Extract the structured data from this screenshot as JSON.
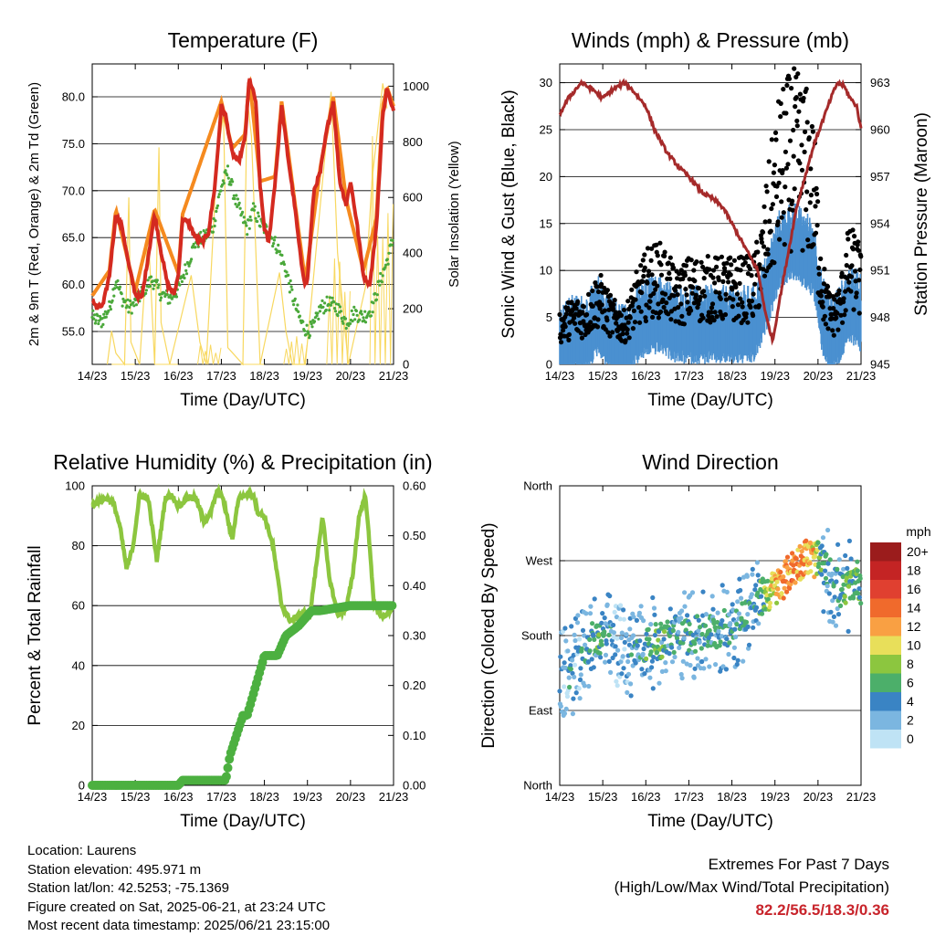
{
  "chart_data": [
    {
      "type": "line",
      "title": "Temperature (F)",
      "xlabel": "Time (Day/UTC)",
      "ylabel": "2m & 9m T (Red, Orange) & 2m Td (Green)",
      "y2label": "Solar Insolation (Yellow)",
      "x_ticks": [
        "14/23",
        "15/23",
        "16/23",
        "17/23",
        "18/23",
        "19/23",
        "20/23",
        "21/23"
      ],
      "ylim": [
        51.5,
        83.5
      ],
      "y_ticks": [
        "55.0",
        "60.0",
        "65.0",
        "70.0",
        "75.0",
        "80.0"
      ],
      "y2lim": [
        0,
        1080
      ],
      "y2_ticks": [
        "0",
        "200",
        "400",
        "600",
        "800",
        "1000"
      ],
      "colors": {
        "t2m": "#d42a20",
        "t9m": "#f58a1f",
        "td": "#4aa83a",
        "solar": "#f8d860"
      },
      "series": [
        {
          "name": "2m T",
          "x": [
            0,
            0.1,
            0.25,
            0.4,
            0.55,
            0.7,
            0.85,
            1.0,
            1.15,
            1.3,
            1.45,
            1.6,
            1.75,
            1.9,
            2.0,
            2.1,
            2.25,
            2.4,
            2.55,
            2.7,
            2.85,
            3.0,
            3.1,
            3.25,
            3.4,
            3.55,
            3.65,
            3.8,
            3.9,
            4.0,
            4.1,
            4.25,
            4.4,
            4.55,
            4.7,
            4.85,
            4.95,
            5.0,
            5.15,
            5.3,
            5.45,
            5.6,
            5.75,
            5.9,
            6.0,
            6.15,
            6.3,
            6.45,
            6.6,
            6.75,
            6.85,
            6.95,
            7.0
          ],
          "y": [
            58.5,
            57.5,
            57.8,
            61.0,
            67.5,
            66.0,
            62.0,
            59.0,
            58.5,
            63.0,
            67.5,
            63.5,
            60.0,
            59.0,
            61.0,
            67.0,
            66.5,
            65.0,
            64.5,
            65.5,
            70.5,
            79.0,
            78.0,
            74.0,
            73.0,
            75.5,
            82.0,
            79.5,
            70.5,
            66.0,
            64.5,
            71.0,
            79.0,
            73.5,
            68.5,
            62.5,
            60.0,
            60.5,
            70.0,
            72.0,
            76.5,
            79.5,
            71.0,
            68.5,
            71.0,
            66.5,
            61.0,
            60.0,
            66.0,
            78.0,
            81.0,
            79.0,
            78.5
          ]
        },
        {
          "name": "9m T",
          "x": [
            0,
            0.4,
            0.55,
            1.0,
            1.45,
            2.0,
            2.1,
            3.0,
            3.25,
            3.55,
            3.65,
            3.9,
            4.25,
            4.4,
            4.7,
            4.95,
            5.3,
            5.6,
            5.9,
            6.3,
            6.6,
            6.75,
            6.85,
            7.0
          ],
          "y": [
            58.8,
            61.5,
            68.0,
            59.3,
            68.0,
            61.2,
            67.5,
            79.5,
            74.5,
            76.0,
            82.0,
            71.0,
            71.5,
            79.5,
            69.0,
            60.3,
            72.5,
            80.0,
            69.0,
            61.5,
            67.0,
            79.0,
            81.0,
            79.0
          ]
        },
        {
          "name": "2m Td",
          "x": [
            0,
            0.2,
            0.4,
            0.55,
            0.7,
            0.85,
            1.0,
            1.2,
            1.4,
            1.6,
            1.8,
            2.0,
            2.2,
            2.4,
            2.6,
            2.8,
            3.0,
            3.15,
            3.3,
            3.45,
            3.6,
            3.75,
            3.9,
            4.1,
            4.3,
            4.5,
            4.7,
            4.85,
            5.0,
            5.15,
            5.3,
            5.5,
            5.7,
            5.9,
            6.1,
            6.3,
            6.5,
            6.7,
            6.85,
            7.0
          ],
          "y": [
            56.5,
            56.0,
            57.5,
            60.5,
            58.5,
            57.5,
            58.0,
            59.5,
            60.5,
            59.0,
            58.5,
            59.5,
            62.0,
            64.5,
            65.0,
            66.0,
            70.5,
            72.0,
            69.5,
            67.5,
            66.0,
            68.0,
            66.5,
            65.5,
            64.0,
            61.5,
            58.0,
            56.0,
            55.0,
            55.5,
            57.5,
            58.0,
            57.5,
            56.0,
            57.0,
            56.5,
            57.5,
            60.5,
            62.5,
            65.0
          ]
        },
        {
          "name": "Solar",
          "x": [
            0.35,
            0.45,
            0.55,
            0.75,
            0.85,
            0.9,
            1.1,
            1.3,
            1.45,
            1.55,
            1.6,
            1.8,
            2.3,
            2.5,
            2.65,
            2.9,
            3.05,
            3.15,
            3.5,
            3.6,
            3.7,
            3.9,
            4.35,
            4.5,
            4.65,
            4.95,
            5.4,
            5.55,
            5.7,
            5.95,
            6.35,
            6.5,
            6.75,
            6.85
          ],
          "y": [
            0,
            120,
            40,
            0,
            600,
            80,
            0,
            480,
            0,
            780,
            150,
            0,
            320,
            80,
            0,
            740,
            900,
            60,
            0,
            960,
            820,
            0,
            330,
            120,
            0,
            0,
            740,
            980,
            400,
            0,
            280,
            660,
            1010,
            920
          ]
        }
      ]
    },
    {
      "type": "scatter",
      "title": "Winds (mph) & Pressure (mb)",
      "xlabel": "Time (Day/UTC)",
      "ylabel": "Sonic Wind & Gust (Blue, Black)",
      "y2label": "Station Pressure (Maroon)",
      "x_ticks": [
        "14/23",
        "15/23",
        "16/23",
        "17/23",
        "18/23",
        "19/23",
        "20/23",
        "21/23"
      ],
      "ylim": [
        0,
        32
      ],
      "y_ticks": [
        "0",
        "5",
        "10",
        "15",
        "20",
        "25",
        "30"
      ],
      "y2lim": [
        945,
        964.2
      ],
      "y2_ticks": [
        "945",
        "948",
        "951",
        "954",
        "957",
        "960",
        "963"
      ],
      "colors": {
        "wind": "#4a90d0",
        "gust": "#000000",
        "pressure": "#a52a2a"
      },
      "wind_mean": {
        "x": [
          0,
          0.3,
          0.6,
          0.9,
          1.2,
          1.5,
          1.8,
          2.1,
          2.4,
          2.7,
          3.0,
          3.3,
          3.6,
          3.9,
          4.2,
          4.5,
          4.7,
          4.9,
          5.1,
          5.4,
          5.7,
          5.9,
          6.1,
          6.3,
          6.5,
          6.7,
          6.9,
          7.0
        ],
        "y": [
          2,
          3,
          3,
          5,
          3,
          2,
          4,
          5,
          5,
          4,
          4,
          4,
          4,
          4,
          4,
          4,
          6,
          9,
          12,
          13,
          12,
          11,
          5,
          3,
          4,
          6,
          6,
          5
        ]
      },
      "gust_mean": {
        "x": [
          0,
          0.3,
          0.6,
          0.9,
          1.2,
          1.5,
          1.8,
          2.1,
          2.4,
          2.7,
          3.0,
          3.3,
          3.6,
          3.9,
          4.2,
          4.5,
          4.7,
          4.9,
          5.1,
          5.4,
          5.7,
          5.9,
          6.1,
          6.3,
          6.5,
          6.7,
          6.9,
          7.0
        ],
        "y": [
          4,
          5,
          5,
          7,
          5,
          4,
          7,
          9,
          9,
          7,
          8,
          8,
          8,
          8,
          8,
          8,
          11,
          16,
          20,
          22,
          21,
          18,
          8,
          5,
          6,
          10,
          10,
          8
        ]
      },
      "pressure": {
        "x": [
          0,
          0.2,
          0.5,
          0.8,
          1.0,
          1.2,
          1.5,
          1.7,
          2.0,
          2.2,
          2.5,
          2.8,
          3.0,
          3.3,
          3.6,
          3.8,
          4.0,
          4.2,
          4.4,
          4.6,
          4.8,
          4.95,
          5.1,
          5.3,
          5.5,
          5.7,
          5.9,
          6.1,
          6.3,
          6.45,
          6.6,
          6.75,
          6.9,
          7.0
        ],
        "y": [
          961,
          962,
          963,
          962.5,
          962,
          962.5,
          963,
          962.5,
          961.5,
          960,
          958.5,
          957.5,
          957,
          956,
          955.5,
          955,
          954,
          953,
          952,
          951,
          948,
          946.5,
          949,
          952,
          955,
          957,
          959,
          960.5,
          962,
          963,
          962.8,
          962,
          961.5,
          960
        ]
      }
    },
    {
      "type": "line",
      "title": "Relative Humidity (%) & Precipitation (in)",
      "xlabel": "Time (Day/UTC)",
      "ylabel": "Percent & Total Rainfall",
      "x_ticks": [
        "14/23",
        "15/23",
        "16/23",
        "17/23",
        "18/23",
        "19/23",
        "20/23",
        "21/23"
      ],
      "ylim": [
        0,
        100
      ],
      "y_ticks": [
        "0",
        "20",
        "40",
        "60",
        "80",
        "100"
      ],
      "y2lim": [
        0,
        0.6
      ],
      "y2_ticks": [
        "0.00",
        "0.10",
        "0.20",
        "0.30",
        "0.40",
        "0.50",
        "0.60"
      ],
      "colors": {
        "rh": "#8cc63f",
        "precip": "#4cb040"
      },
      "series": [
        {
          "name": "RH",
          "x": [
            0,
            0.2,
            0.35,
            0.5,
            0.65,
            0.8,
            0.95,
            1.1,
            1.3,
            1.5,
            1.7,
            1.85,
            2.0,
            2.2,
            2.4,
            2.6,
            2.75,
            2.9,
            3.0,
            3.1,
            3.25,
            3.4,
            3.6,
            3.75,
            3.85,
            4.0,
            4.2,
            4.4,
            4.6,
            4.75,
            4.9,
            5.05,
            5.2,
            5.35,
            5.5,
            5.7,
            5.9,
            6.05,
            6.2,
            6.35,
            6.55,
            6.7,
            6.8,
            6.9,
            7.0
          ],
          "y": [
            94,
            95,
            96,
            94,
            86,
            72,
            80,
            97,
            96,
            75,
            96,
            97,
            93,
            96,
            96,
            88,
            91,
            98,
            97,
            92,
            82,
            96,
            97,
            97,
            91,
            90,
            80,
            60,
            55,
            56,
            58,
            56,
            73,
            90,
            70,
            57,
            59,
            70,
            90,
            97,
            60,
            57,
            56,
            58,
            60
          ]
        },
        {
          "name": "Precip",
          "x": [
            0,
            1.0,
            2.0,
            2.1,
            3.1,
            3.2,
            3.5,
            3.6,
            4.0,
            4.3,
            4.5,
            4.8,
            5.1,
            5.3,
            6.0,
            6.8,
            7.0
          ],
          "y": [
            0,
            0,
            0,
            0.01,
            0.01,
            0.06,
            0.14,
            0.14,
            0.26,
            0.26,
            0.3,
            0.32,
            0.35,
            0.35,
            0.36,
            0.36,
            0.36
          ]
        }
      ]
    },
    {
      "type": "scatter",
      "title": "Wind Direction",
      "xlabel": "Time (Day/UTC)",
      "ylabel": "Direction (Colored By Speed)",
      "x_ticks": [
        "14/23",
        "15/23",
        "16/23",
        "17/23",
        "18/23",
        "19/23",
        "20/23",
        "21/23"
      ],
      "y_ticks": [
        "North",
        "East",
        "South",
        "West",
        "North"
      ],
      "ylim": [
        0,
        360
      ],
      "legend_title": "mph",
      "legend_labels": [
        "20+",
        "18",
        "16",
        "14",
        "12",
        "10",
        "8",
        "6",
        "4",
        "2",
        "0"
      ],
      "legend_colors": [
        "#9b1c1c",
        "#c42424",
        "#e04030",
        "#f06a2c",
        "#f9a043",
        "#e8df5a",
        "#8cc63f",
        "#4caf6a",
        "#3a84c4",
        "#7bb6e0",
        "#bfe3f5"
      ],
      "trend": {
        "x": [
          0,
          0.3,
          0.6,
          0.9,
          1.2,
          1.5,
          1.8,
          2.1,
          2.4,
          2.7,
          3.0,
          3.3,
          3.6,
          3.9,
          4.2,
          4.5,
          4.8,
          5.1,
          5.4,
          5.7,
          6.0,
          6.3,
          6.6,
          6.9,
          7.0
        ],
        "y": [
          130,
          140,
          165,
          180,
          175,
          160,
          165,
          170,
          175,
          180,
          180,
          182,
          185,
          190,
          200,
          220,
          230,
          240,
          260,
          275,
          270,
          250,
          230,
          250,
          240
        ]
      }
    }
  ],
  "info": {
    "location": "Location: Laurens",
    "elevation": "Station elevation: 495.971 m",
    "latlon": "Station lat/lon: 42.5253; -75.1369",
    "created": "Figure created on Sat, 2025-06-21, at 23:24 UTC",
    "recent": "Most recent data timestamp: 2025/06/21 23:15:00"
  },
  "extremes": {
    "line1": "Extremes For Past 7 Days",
    "line2": "(High/Low/Max Wind/Total Precipitation)",
    "values": "82.2/56.5/18.3/0.36"
  }
}
